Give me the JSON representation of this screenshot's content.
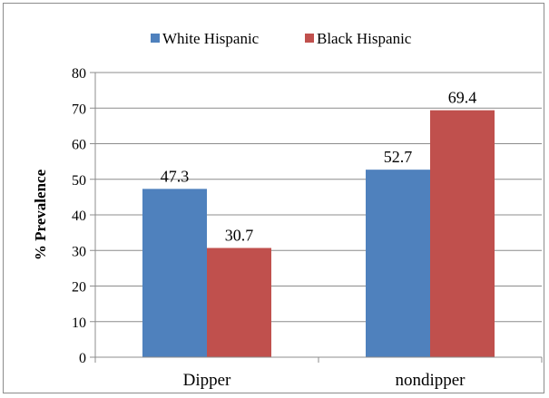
{
  "chart_data": {
    "type": "bar",
    "categories": [
      "Dipper",
      "nondipper"
    ],
    "series": [
      {
        "name": "White Hispanic",
        "values": [
          47.3,
          52.7
        ],
        "color": "#4f81bd"
      },
      {
        "name": "Black Hispanic",
        "values": [
          30.7,
          69.4
        ],
        "color": "#c0504d"
      }
    ],
    "data_labels": [
      [
        "47.3",
        "52.7"
      ],
      [
        "30.7",
        "69.4"
      ]
    ],
    "title": "",
    "xlabel": "",
    "ylabel": "% Prevalence",
    "ylim": [
      0,
      80
    ],
    "yticks": [
      "0",
      "10",
      "20",
      "30",
      "40",
      "50",
      "60",
      "70",
      "80"
    ],
    "grid": true,
    "legend_position": "top"
  }
}
